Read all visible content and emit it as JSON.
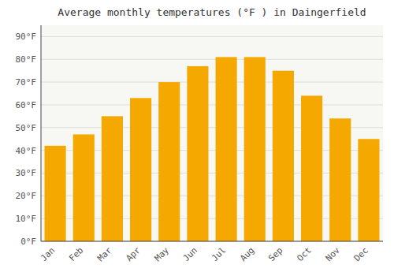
{
  "chart_data": {
    "type": "bar",
    "title": "Average monthly temperatures (°F ) in Daingerfield",
    "categories": [
      "Jan",
      "Feb",
      "Mar",
      "Apr",
      "May",
      "Jun",
      "Jul",
      "Aug",
      "Sep",
      "Oct",
      "Nov",
      "Dec"
    ],
    "values": [
      42,
      47,
      55,
      63,
      70,
      77,
      81,
      81,
      75,
      64,
      54,
      45
    ],
    "color": "#F5A800",
    "ylim": [
      0,
      95
    ],
    "yticks": [
      {
        "value": 0,
        "label": "0°F"
      },
      {
        "value": 10,
        "label": "10°F"
      },
      {
        "value": 20,
        "label": "20°F"
      },
      {
        "value": 30,
        "label": "30°F"
      },
      {
        "value": 40,
        "label": "40°F"
      },
      {
        "value": 50,
        "label": "50°F"
      },
      {
        "value": 60,
        "label": "60°F"
      },
      {
        "value": 70,
        "label": "70°F"
      },
      {
        "value": 80,
        "label": "80°F"
      },
      {
        "value": 90,
        "label": "90°F"
      }
    ],
    "grid": true
  }
}
